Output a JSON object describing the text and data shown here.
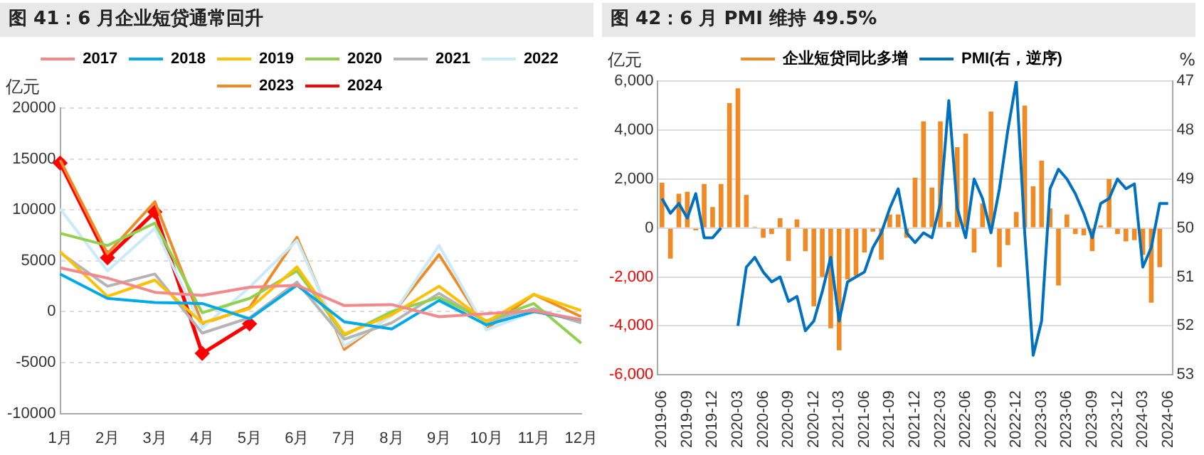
{
  "chart_data": [
    {
      "type": "line",
      "title": "图 41：6 月企业短贷通常回升",
      "ylabel": "亿元",
      "categories": [
        "1月",
        "2月",
        "3月",
        "4月",
        "5月",
        "6月",
        "7月",
        "8月",
        "9月",
        "10月",
        "11月",
        "12月"
      ],
      "series": [
        {
          "name": "2017",
          "color": "#f4898b",
          "values": [
            4300,
            3300,
            1900,
            1600,
            2400,
            2600,
            600,
            700,
            -500,
            -200,
            100,
            -800
          ]
        },
        {
          "name": "2018",
          "color": "#00a9e8",
          "values": [
            3700,
            1300,
            900,
            800,
            -700,
            2600,
            -1000,
            -1700,
            1100,
            -1300,
            0,
            -800
          ]
        },
        {
          "name": "2019",
          "color": "#ffc000",
          "values": [
            5900,
            1500,
            3100,
            -1100,
            300,
            4400,
            -2200,
            -300,
            2500,
            -1000,
            1700,
            100
          ]
        },
        {
          "name": "2020",
          "color": "#92d050",
          "values": [
            7700,
            6500,
            8700,
            -100,
            1300,
            4000,
            -2300,
            0,
            1400,
            -900,
            800,
            -3100
          ]
        },
        {
          "name": "2021",
          "color": "#b4b4b4",
          "values": [
            5800,
            2500,
            3700,
            -2100,
            -600,
            2900,
            -2700,
            -1100,
            1800,
            -1000,
            300,
            -1100
          ]
        },
        {
          "name": "2022",
          "color": "#c9ebf9",
          "values": [
            10100,
            4000,
            8200,
            -1600,
            2400,
            7000,
            -3400,
            -400,
            6500,
            -1800,
            0,
            -700
          ]
        },
        {
          "name": "2023",
          "color": "#f08a24",
          "values": [
            14900,
            5700,
            10800,
            -1200,
            400,
            7300,
            -3700,
            -300,
            5600,
            -1700,
            1700,
            -500
          ]
        },
        {
          "name": "2024",
          "color": "#ff0000",
          "marker": "diamond",
          "values": [
            14600,
            5300,
            9800,
            -4100,
            -1200,
            null,
            null,
            null,
            null,
            null,
            null,
            null
          ]
        }
      ],
      "ylim": [
        -10000,
        20000
      ],
      "yticks": [
        -10000,
        -5000,
        0,
        5000,
        10000,
        15000,
        20000
      ],
      "grid": "y",
      "legend": "top",
      "marker": "none",
      "line_style": "solid"
    },
    {
      "type": "bar",
      "title": "图 42：6 月 PMI 维持 49.5%",
      "ylabel": "亿元",
      "y2label": "%",
      "categories": [
        "2019-06",
        null,
        null,
        "2019-09",
        null,
        null,
        "2019-12",
        null,
        null,
        "2020-03",
        null,
        null,
        "2020-06",
        null,
        null,
        "2020-09",
        null,
        null,
        "2020-12",
        null,
        null,
        "2021-03",
        null,
        null,
        "2021-06",
        null,
        null,
        "2021-09",
        null,
        null,
        "2021-12",
        null,
        null,
        "2022-03",
        null,
        null,
        "2022-06",
        null,
        null,
        "2022-09",
        null,
        null,
        "2022-12",
        null,
        null,
        "2023-03",
        null,
        null,
        "2023-06",
        null,
        null,
        "2023-09",
        null,
        null,
        "2023-12",
        null,
        null,
        "2024-03",
        null,
        null,
        "2024-06"
      ],
      "series": [
        {
          "name": "企业短贷同比多增",
          "type": "bar",
          "color": "#f08a24",
          "values": [
            1850,
            -1250,
            1400,
            1480,
            -100,
            1800,
            850,
            1800,
            5100,
            5700,
            1350,
            50,
            -400,
            -250,
            400,
            -1350,
            350,
            -950,
            -3200,
            -2000,
            -4100,
            -5000,
            -2100,
            -1950,
            -1000,
            -150,
            -1300,
            550,
            550,
            -400,
            2050,
            4350,
            1650,
            4350,
            250,
            3300,
            3850,
            -1000,
            1000,
            4750,
            -1600,
            -700,
            650,
            5000,
            1700,
            2750,
            800,
            -2350,
            550,
            -250,
            -300,
            -950,
            100,
            2000,
            -250,
            -550,
            -500,
            -1100,
            -3050,
            -1600,
            null
          ]
        },
        {
          "name": "PMI(右，逆序)",
          "type": "line",
          "axis": "y2",
          "color": "#0070c0",
          "values": [
            49.4,
            49.7,
            49.5,
            49.8,
            49.3,
            50.2,
            50.2,
            50.0,
            null,
            52.0,
            50.8,
            50.6,
            50.9,
            51.1,
            51.0,
            51.5,
            51.4,
            52.1,
            51.9,
            51.3,
            50.6,
            51.9,
            51.1,
            51.0,
            50.9,
            50.4,
            50.1,
            49.6,
            49.2,
            50.1,
            50.3,
            50.1,
            50.2,
            49.5,
            47.4,
            49.6,
            50.2,
            49.0,
            49.4,
            50.1,
            49.2,
            48.0,
            47.0,
            50.1,
            52.6,
            51.9,
            49.2,
            48.8,
            49.0,
            49.3,
            49.7,
            50.2,
            49.5,
            49.4,
            49.0,
            49.2,
            49.1,
            50.8,
            50.4,
            49.5,
            49.5
          ]
        }
      ],
      "ylim": [
        -6000,
        6000
      ],
      "yticks": [
        {
          "value": -6000,
          "label": "-6,000"
        },
        {
          "value": -4000,
          "label": "-4,000"
        },
        {
          "value": -2000,
          "label": "-2,000"
        },
        0,
        {
          "value": 2000,
          "label": "2,000"
        },
        {
          "value": 4000,
          "label": "4,000"
        },
        {
          "value": 6000,
          "label": "6,000"
        }
      ],
      "y2lim": [
        53,
        47
      ],
      "y2ticks": [
        53,
        52,
        51,
        50,
        49,
        48,
        47
      ],
      "grid": "y",
      "legend": "top",
      "marker": "none",
      "line_style": "solid"
    }
  ]
}
